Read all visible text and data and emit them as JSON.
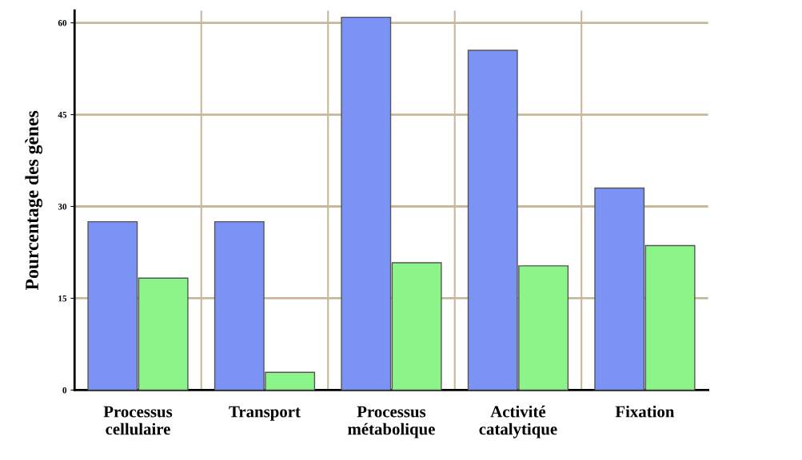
{
  "chart_data": {
    "type": "bar",
    "ylabel": "Pourcentage des gènes",
    "categories": [
      "Processus\ncellulaire",
      "Transport",
      "Processus\nmétabolique",
      "Activité\ncatalytique",
      "Fixation"
    ],
    "series": [
      {
        "color": "#7b93f5",
        "values": [
          27.5,
          27.5,
          60.9,
          55.5,
          33
        ]
      },
      {
        "color": "#8cf58a",
        "values": [
          18.3,
          2.9,
          20.8,
          20.3,
          23.6
        ]
      }
    ],
    "ylim": [
      0,
      62
    ],
    "yticks": [
      0,
      15,
      30,
      45,
      60
    ],
    "grid": true
  }
}
